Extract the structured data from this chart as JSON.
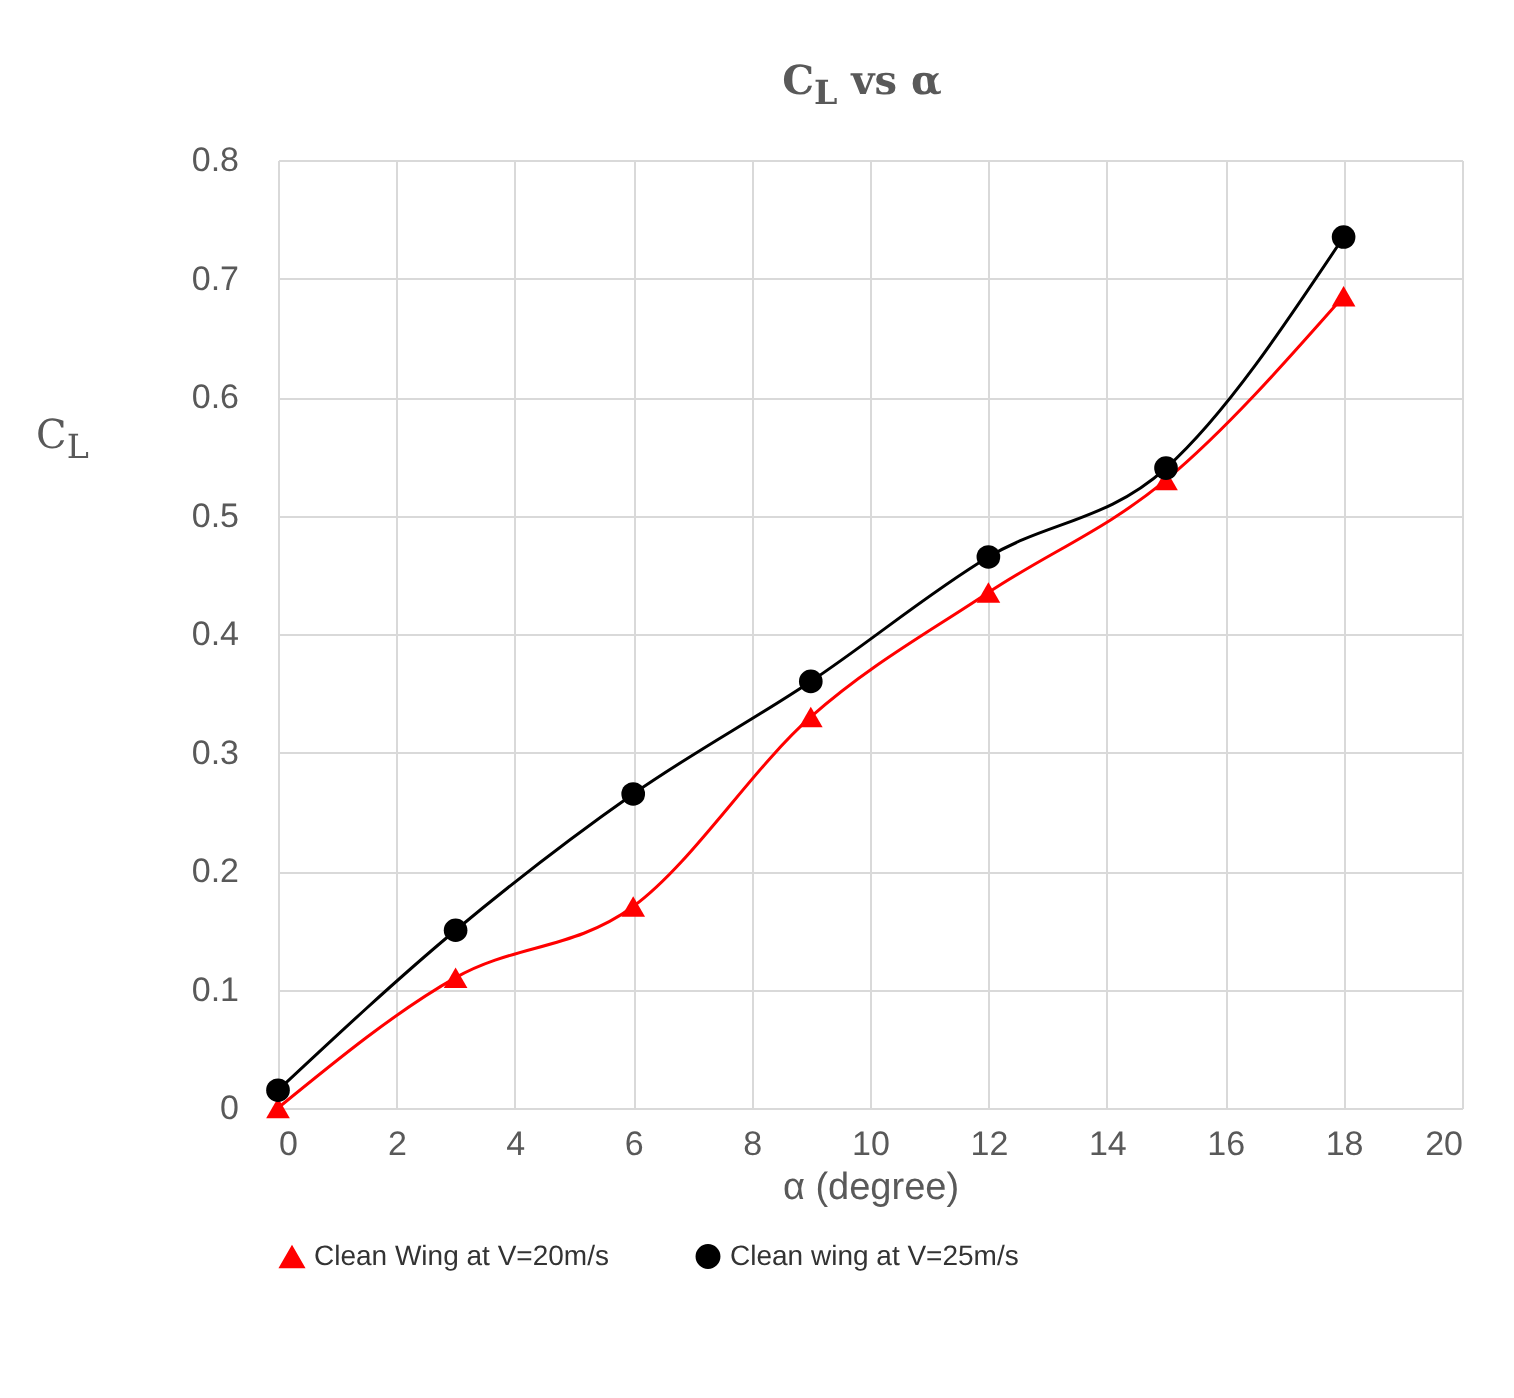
{
  "chart_data": {
    "type": "line",
    "title": "C$_{L}$ vs α",
    "xlabel": "α (degree)",
    "ylabel": "C$_{L}$",
    "x": [
      0,
      3,
      6,
      9,
      12,
      15,
      18
    ],
    "series": [
      {
        "name": "Clean Wing at V=20m/s",
        "color": "#ff0000",
        "marker": "triangle",
        "values": [
          0,
          0.11,
          0.17,
          0.33,
          0.435,
          0.53,
          0.685
        ]
      },
      {
        "name": "Clean wing at V=25m/s",
        "color": "#000000",
        "marker": "circle",
        "values": [
          0.015,
          0.15,
          0.265,
          0.36,
          0.465,
          0.54,
          0.735
        ]
      }
    ],
    "xlim": [
      0,
      20
    ],
    "xticks": [
      0,
      2,
      4,
      6,
      8,
      10,
      12,
      14,
      16,
      18,
      20
    ],
    "ylim": [
      0,
      0.8
    ],
    "yticks": [
      0,
      0.1,
      0.2,
      0.3,
      0.4,
      0.5,
      0.6,
      0.7,
      0.8
    ],
    "grid": true,
    "legend": "bottom",
    "line_style": "solid"
  }
}
